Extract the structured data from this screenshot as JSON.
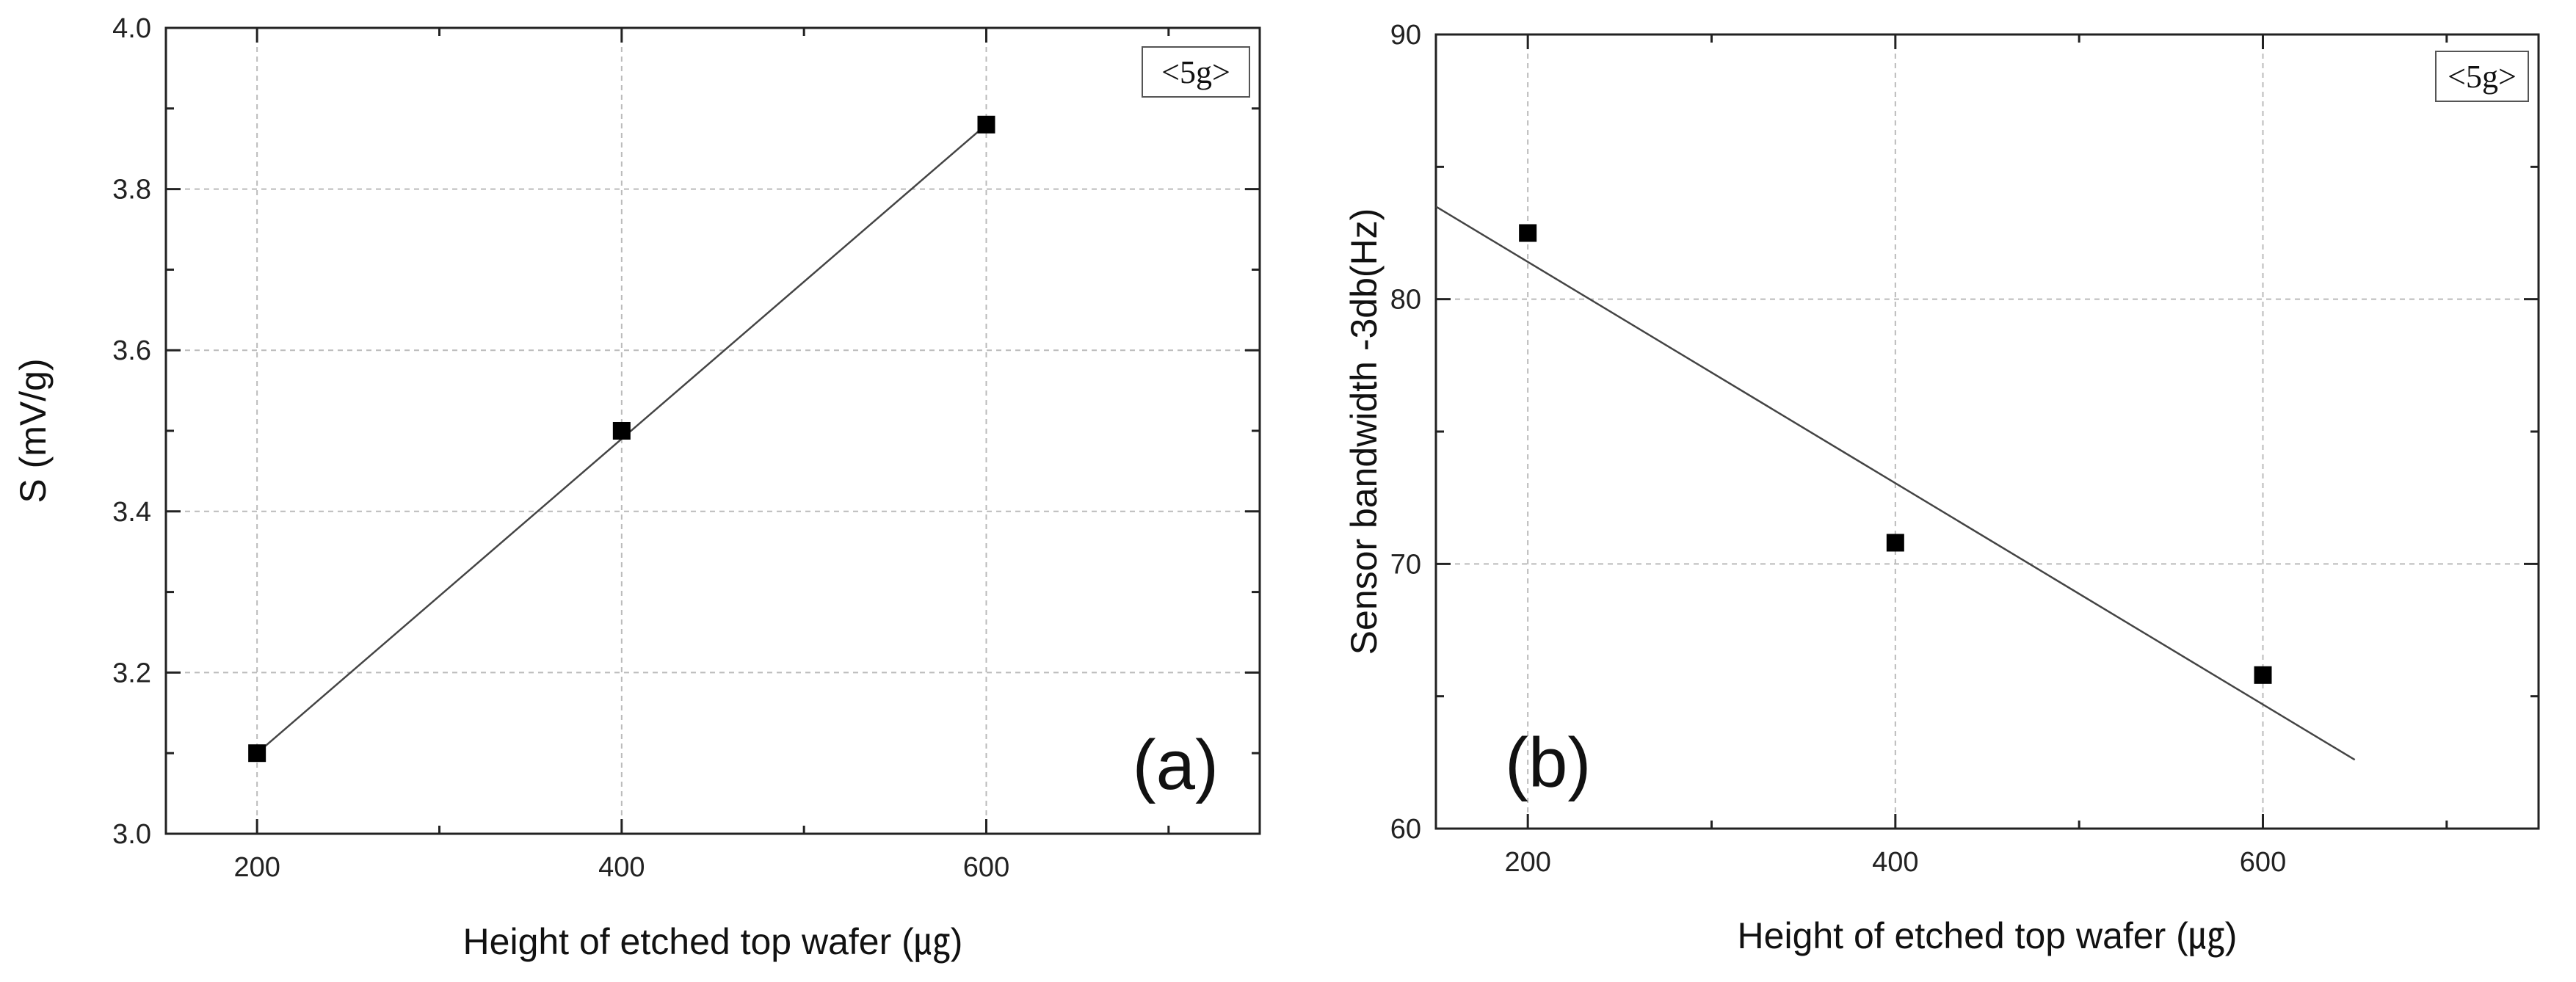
{
  "chart_data": [
    {
      "type": "scatter",
      "panel_label": "(a)",
      "legend_note": "<5g>",
      "xlabel": "Height of etched top wafer (㎍)",
      "ylabel": "S (mV/g)",
      "xlim": [
        150,
        750
      ],
      "ylim": [
        3.0,
        4.0
      ],
      "xticks": [
        200,
        400,
        600
      ],
      "xminor": [
        300,
        500,
        700
      ],
      "yticks": [
        "3.0",
        "3.2",
        "3.4",
        "3.6",
        "3.8",
        "4.0"
      ],
      "yminor": [
        3.1,
        3.3,
        3.5,
        3.7,
        3.9
      ],
      "grid": true,
      "series": [
        {
          "name": "S",
          "x": [
            200,
            400,
            600
          ],
          "y": [
            3.1,
            3.5,
            3.88
          ]
        }
      ],
      "fit_line": {
        "x": [
          200,
          600
        ],
        "y": [
          3.1,
          3.88
        ]
      }
    },
    {
      "type": "scatter",
      "panel_label": "(b)",
      "legend_note": "<5g>",
      "xlabel": "Height of etched top wafer (㎍)",
      "ylabel": "Sensor bandwidth -3db(Hz)",
      "xlim": [
        150,
        750
      ],
      "ylim": [
        60,
        90
      ],
      "xticks": [
        200,
        400,
        600
      ],
      "xminor": [
        300,
        500,
        700
      ],
      "yticks": [
        "60",
        "70",
        "80",
        "90"
      ],
      "yminor": [
        65,
        75,
        85
      ],
      "grid": true,
      "series": [
        {
          "name": "Bandwidth",
          "x": [
            200,
            400,
            600
          ],
          "y": [
            82.5,
            70.8,
            65.8
          ]
        }
      ],
      "fit_line": {
        "x": [
          150,
          650
        ],
        "y": [
          83.5,
          62.6
        ]
      }
    }
  ]
}
